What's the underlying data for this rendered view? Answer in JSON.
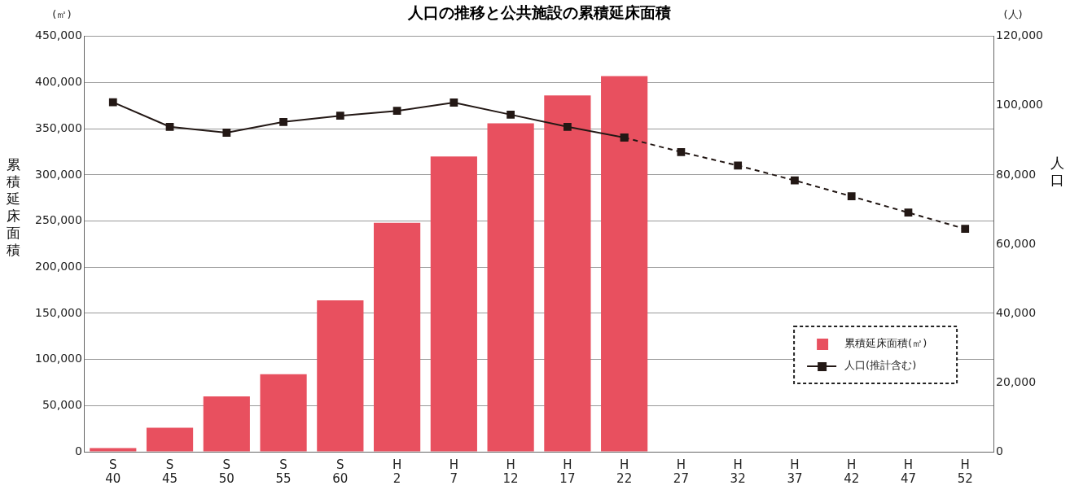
{
  "chart_data": {
    "type": "bar",
    "title": "人口の推移と公共施設の累積延床面積",
    "ylabel": "累積延床面積",
    "y2label": "人口",
    "annotations": [
      "(㎡)",
      "(人)"
    ],
    "categories": [
      "S 40",
      "S 45",
      "S 50",
      "S 55",
      "S 60",
      "H 2",
      "H 7",
      "H 12",
      "H 17",
      "H 22",
      "H 27",
      "H 32",
      "H 37",
      "H 42",
      "H 47",
      "H 52"
    ],
    "series": [
      {
        "name": "累積延床面積(㎡)",
        "color": "#e8505f",
        "values": [
          4000,
          26000,
          60000,
          84000,
          164000,
          248000,
          320000,
          356000,
          386000,
          407000,
          null,
          null,
          null,
          null,
          null,
          null
        ]
      },
      {
        "name": "人口(推計含む)",
        "type": "line",
        "axis": "y2",
        "color": "#231815",
        "marker": "square",
        "line_style": "solid",
        "values": [
          101000,
          93900,
          92200,
          95300,
          97100,
          98500,
          100900,
          97400,
          93900,
          90800,
          null,
          null,
          null,
          null,
          null,
          null
        ]
      },
      {
        "type": "line",
        "axis": "y2",
        "color": "#231815",
        "marker": "square",
        "line_style": "dashed",
        "values": [
          null,
          null,
          null,
          null,
          null,
          null,
          null,
          null,
          null,
          90800,
          86600,
          82700,
          78400,
          73800,
          69100,
          64400
        ]
      }
    ],
    "ylim": [
      0,
      450000
    ],
    "yticks": [
      0,
      {
        "value": 50000,
        "label": "50,000"
      },
      {
        "value": 100000,
        "label": "100,000"
      },
      {
        "value": 150000,
        "label": "150,000"
      },
      {
        "value": 200000,
        "label": "200,000"
      },
      {
        "value": 250000,
        "label": "250,000"
      },
      {
        "value": 300000,
        "label": "300,000"
      },
      {
        "value": 350000,
        "label": "350,000"
      },
      {
        "value": 400000,
        "label": "400,000"
      },
      {
        "value": 450000,
        "label": "450,000"
      }
    ],
    "y2lim": [
      0,
      120000
    ],
    "y2ticks": [
      0,
      {
        "value": 20000,
        "label": "20,000"
      },
      {
        "value": 40000,
        "label": "40,000"
      },
      {
        "value": 60000,
        "label": "60,000"
      },
      {
        "value": 80000,
        "label": "80,000"
      },
      {
        "value": 100000,
        "label": "100,000"
      },
      {
        "value": 120000,
        "label": "120,000"
      }
    ],
    "grid": "y",
    "legend": "bottom right"
  }
}
